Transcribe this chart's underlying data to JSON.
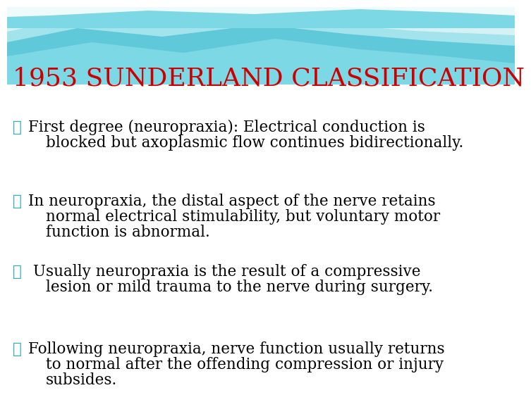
{
  "title": "1953 SUNDERLAND CLASSIFICATION",
  "title_color": "#CC0000",
  "title_fontsize": 26,
  "bullet_color": "#2ab0c0",
  "text_color": "#000000",
  "bullet_symbol": "♻",
  "font_family": "DejaVu Serif",
  "body_fontsize": 15.5,
  "bullet_entries": [
    {
      "lines": [
        "♻First degree (neuropraxia): Electrical conduction is",
        "blocked but axoplasmic flow continues bidirectionally."
      ]
    },
    {
      "lines": [
        "♻In neuropraxia, the distal aspect of the nerve retains",
        "normal electrical stimulability, but voluntary motor",
        "function is abnormal."
      ]
    },
    {
      "lines": [
        "♻ Usually neuropraxia is the result of a compressive",
        "lesion or mild trauma to the nerve during surgery."
      ]
    },
    {
      "lines": [
        "♻Following neuropraxia, nerve function usually returns",
        "to normal after the offending compression or injury",
        "subsides."
      ]
    }
  ],
  "wave_colors": [
    "#7dd8e0",
    "#a8e4ea",
    "#c8eff3",
    "#e8f8fa"
  ],
  "bg_color": "#ffffff"
}
